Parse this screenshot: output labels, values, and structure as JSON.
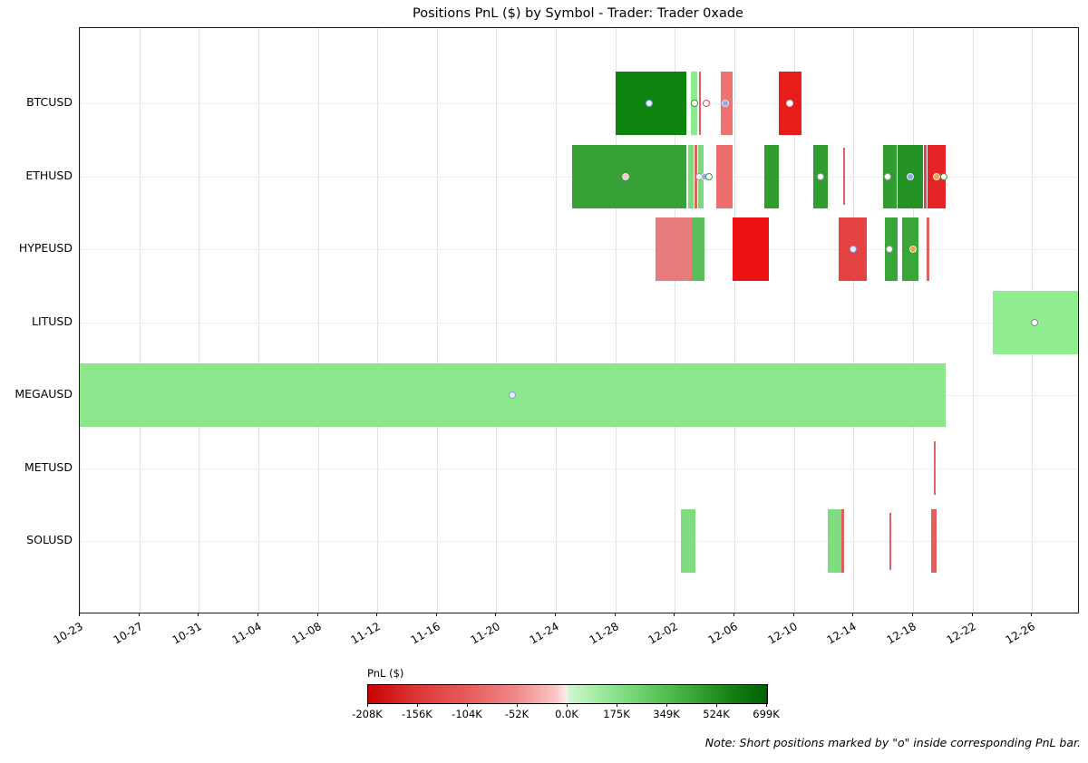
{
  "title": "Positions PnL ($) by Symbol - Trader: Trader 0xade",
  "note": "Note: Short positions marked by \"o\" inside corresponding PnL bar.",
  "chart_data": {
    "type": "timeline-bar",
    "title": "Positions PnL ($) by Symbol - Trader: Trader 0xade",
    "ylabel_categories": [
      "BTCUSD",
      "ETHUSD",
      "HYPEUSD",
      "LITUSD",
      "MEGAUSD",
      "METUSD",
      "SOLUSD"
    ],
    "x_tick_labels": [
      "10-23",
      "10-27",
      "10-31",
      "11-04",
      "11-08",
      "11-12",
      "11-16",
      "11-20",
      "11-24",
      "11-28",
      "12-02",
      "12-06",
      "12-10",
      "12-14",
      "12-18",
      "12-22",
      "12-26"
    ],
    "x_tick_step_days": 4,
    "x_domain_days": 67.1,
    "grid": true,
    "colorbar": {
      "title": "PnL ($)",
      "tick_labels": [
        "-208K",
        "-156K",
        "-104K",
        "-52K",
        "0.0K",
        "175K",
        "349K",
        "524K",
        "699K"
      ],
      "min_color": "#c90303",
      "zero_color": "#fdeded",
      "max_color": "#006000"
    },
    "bars": [
      {
        "sym": "BTCUSD",
        "start": 36.0,
        "end": 40.8,
        "color": "#0e850e"
      },
      {
        "sym": "BTCUSD",
        "start": 41.1,
        "end": 41.5,
        "color": "#8ee88e"
      },
      {
        "sym": "BTCUSD",
        "start": 41.6,
        "end": 41.75,
        "color": "#e06060"
      },
      {
        "sym": "BTCUSD",
        "start": 43.1,
        "end": 43.9,
        "color": "#ef7373"
      },
      {
        "sym": "BTCUSD",
        "start": 47.0,
        "end": 48.5,
        "color": "#e91c1c"
      },
      {
        "sym": "ETHUSD",
        "start": 33.1,
        "end": 40.8,
        "color": "#37a037"
      },
      {
        "sym": "ETHUSD",
        "start": 40.9,
        "end": 41.25,
        "color": "#7fd87f"
      },
      {
        "sym": "ETHUSD",
        "start": 41.35,
        "end": 41.5,
        "color": "#e06060"
      },
      {
        "sym": "ETHUSD",
        "start": 41.55,
        "end": 41.9,
        "color": "#7fd87f"
      },
      {
        "sym": "ETHUSD",
        "start": 42.8,
        "end": 43.9,
        "color": "#ee6e6e"
      },
      {
        "sym": "ETHUSD",
        "start": 46.0,
        "end": 47.0,
        "color": "#2f9e2f"
      },
      {
        "sym": "ETHUSD",
        "start": 49.3,
        "end": 50.3,
        "color": "#2f9e2f"
      },
      {
        "sym": "ETHUSD",
        "start": 51.3,
        "end": 51.45,
        "color": "#e06060",
        "h": 0.9
      },
      {
        "sym": "ETHUSD",
        "start": 54.0,
        "end": 54.9,
        "color": "#2f9e2f"
      },
      {
        "sym": "ETHUSD",
        "start": 55.0,
        "end": 56.7,
        "color": "#259225"
      },
      {
        "sym": "ETHUSD",
        "start": 56.75,
        "end": 56.9,
        "color": "#e04848"
      },
      {
        "sym": "ETHUSD",
        "start": 57.0,
        "end": 58.2,
        "color": "#e52525"
      },
      {
        "sym": "HYPEUSD",
        "start": 38.7,
        "end": 41.15,
        "color": "#e87c7c"
      },
      {
        "sym": "HYPEUSD",
        "start": 41.15,
        "end": 42.0,
        "color": "#5abf5a"
      },
      {
        "sym": "HYPEUSD",
        "start": 43.9,
        "end": 46.3,
        "color": "#ee1212"
      },
      {
        "sym": "HYPEUSD",
        "start": 51.0,
        "end": 52.9,
        "color": "#e54343"
      },
      {
        "sym": "HYPEUSD",
        "start": 54.1,
        "end": 55.0,
        "color": "#38a738"
      },
      {
        "sym": "HYPEUSD",
        "start": 55.3,
        "end": 56.4,
        "color": "#38a738"
      },
      {
        "sym": "HYPEUSD",
        "start": 56.9,
        "end": 57.1,
        "color": "#e06060"
      },
      {
        "sym": "LITUSD",
        "start": 61.4,
        "end": 67.1,
        "color": "#90ee90"
      },
      {
        "sym": "MEGAUSD",
        "start": 0,
        "end": 58.2,
        "color": "#8ce68c"
      },
      {
        "sym": "METUSD",
        "start": 57.4,
        "end": 57.55,
        "color": "#e06868",
        "h": 0.85
      },
      {
        "sym": "SOLUSD",
        "start": 40.4,
        "end": 41.4,
        "color": "#80dc80"
      },
      {
        "sym": "SOLUSD",
        "start": 50.3,
        "end": 51.2,
        "color": "#80dc80"
      },
      {
        "sym": "SOLUSD",
        "start": 51.2,
        "end": 51.35,
        "color": "#e06060"
      },
      {
        "sym": "SOLUSD",
        "start": 54.4,
        "end": 54.55,
        "color": "#e06060",
        "h": 0.9
      },
      {
        "sym": "SOLUSD",
        "start": 57.2,
        "end": 57.6,
        "color": "#e06060"
      }
    ],
    "markers": [
      {
        "sym": "BTCUSD",
        "day": 38.3,
        "fill": "#e6eeff",
        "edge": "#7a9ae0"
      },
      {
        "sym": "BTCUSD",
        "day": 41.35,
        "fill": "#ffffff",
        "edge": "#3a9a3a"
      },
      {
        "sym": "BTCUSD",
        "day": 42.1,
        "fill": "#ffffff",
        "edge": "#d84848"
      },
      {
        "sym": "BTCUSD",
        "day": 43.4,
        "fill": "#8aacee",
        "edge": "#e8e8e8"
      },
      {
        "sym": "BTCUSD",
        "day": 47.7,
        "fill": "#ffffff",
        "edge": "#cccccc"
      },
      {
        "sym": "ETHUSD",
        "day": 36.7,
        "fill": "#f6c6d6",
        "edge": "#e0e0e0"
      },
      {
        "sym": "ETHUSD",
        "day": 41.6,
        "fill": "#ffffff",
        "edge": "#999999"
      },
      {
        "sym": "ETHUSD",
        "day": 42.0,
        "fill": "#8aacee",
        "edge": "#e8e8e8"
      },
      {
        "sym": "ETHUSD",
        "day": 42.3,
        "fill": "#ffffff",
        "edge": "#3a9a3a"
      },
      {
        "sym": "ETHUSD",
        "day": 49.8,
        "fill": "#ffffff",
        "edge": "#999999"
      },
      {
        "sym": "ETHUSD",
        "day": 54.3,
        "fill": "#ffffff",
        "edge": "#999999"
      },
      {
        "sym": "ETHUSD",
        "day": 55.8,
        "fill": "#8aacee",
        "edge": "#e8e8e8"
      },
      {
        "sym": "ETHUSD",
        "day": 57.6,
        "fill": "#f2a93a",
        "edge": "#e8e8e8"
      },
      {
        "sym": "ETHUSD",
        "day": 58.1,
        "fill": "#ffffff",
        "edge": "#3a9a3a"
      },
      {
        "sym": "HYPEUSD",
        "day": 52.0,
        "fill": "#e6eeff",
        "edge": "#8899dd"
      },
      {
        "sym": "HYPEUSD",
        "day": 54.4,
        "fill": "#ffffff",
        "edge": "#999999"
      },
      {
        "sym": "HYPEUSD",
        "day": 56.0,
        "fill": "#f2a93a",
        "edge": "#e8e8e8"
      },
      {
        "sym": "LITUSD",
        "day": 64.2,
        "fill": "#ffffff",
        "edge": "#888888"
      },
      {
        "sym": "MEGAUSD",
        "day": 29.1,
        "fill": "#e9f1ff",
        "edge": "#88a0dd"
      }
    ]
  }
}
